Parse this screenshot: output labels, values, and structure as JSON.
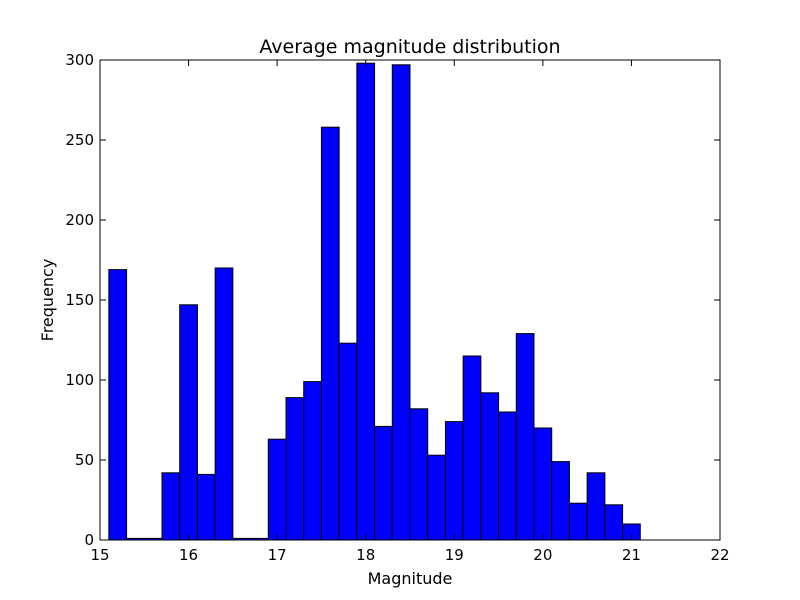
{
  "chart_data": {
    "type": "bar",
    "title": "Average magnitude distribution",
    "xlabel": "Magnitude",
    "ylabel": "Frequency",
    "xlim": [
      15,
      22
    ],
    "ylim": [
      0,
      300
    ],
    "xticks": [
      15,
      16,
      17,
      18,
      19,
      20,
      21,
      22
    ],
    "yticks": [
      0,
      50,
      100,
      150,
      200,
      250,
      300
    ],
    "bar_color": "#0000ff",
    "edge_color": "#000000",
    "grid": false,
    "bins": [
      {
        "x0": 15.1,
        "x1": 15.3,
        "value": 169
      },
      {
        "x0": 15.3,
        "x1": 15.7,
        "value": 1
      },
      {
        "x0": 15.7,
        "x1": 15.9,
        "value": 42
      },
      {
        "x0": 15.9,
        "x1": 16.1,
        "value": 147
      },
      {
        "x0": 16.1,
        "x1": 16.3,
        "value": 41
      },
      {
        "x0": 16.3,
        "x1": 16.5,
        "value": 170
      },
      {
        "x0": 16.5,
        "x1": 16.9,
        "value": 1
      },
      {
        "x0": 16.9,
        "x1": 17.1,
        "value": 63
      },
      {
        "x0": 17.1,
        "x1": 17.3,
        "value": 89
      },
      {
        "x0": 17.3,
        "x1": 17.5,
        "value": 99
      },
      {
        "x0": 17.5,
        "x1": 17.7,
        "value": 258
      },
      {
        "x0": 17.7,
        "x1": 17.9,
        "value": 123
      },
      {
        "x0": 17.9,
        "x1": 18.1,
        "value": 298
      },
      {
        "x0": 18.1,
        "x1": 18.3,
        "value": 71
      },
      {
        "x0": 18.3,
        "x1": 18.5,
        "value": 297
      },
      {
        "x0": 18.5,
        "x1": 18.7,
        "value": 82
      },
      {
        "x0": 18.7,
        "x1": 18.9,
        "value": 53
      },
      {
        "x0": 18.9,
        "x1": 19.1,
        "value": 74
      },
      {
        "x0": 19.1,
        "x1": 19.3,
        "value": 115
      },
      {
        "x0": 19.3,
        "x1": 19.5,
        "value": 92
      },
      {
        "x0": 19.5,
        "x1": 19.7,
        "value": 80
      },
      {
        "x0": 19.7,
        "x1": 19.9,
        "value": 129
      },
      {
        "x0": 19.9,
        "x1": 20.1,
        "value": 70
      },
      {
        "x0": 20.1,
        "x1": 20.3,
        "value": 49
      },
      {
        "x0": 20.3,
        "x1": 20.5,
        "value": 23
      },
      {
        "x0": 20.5,
        "x1": 20.7,
        "value": 42
      },
      {
        "x0": 20.7,
        "x1": 20.9,
        "value": 22
      },
      {
        "x0": 20.9,
        "x1": 21.1,
        "value": 10
      }
    ]
  }
}
